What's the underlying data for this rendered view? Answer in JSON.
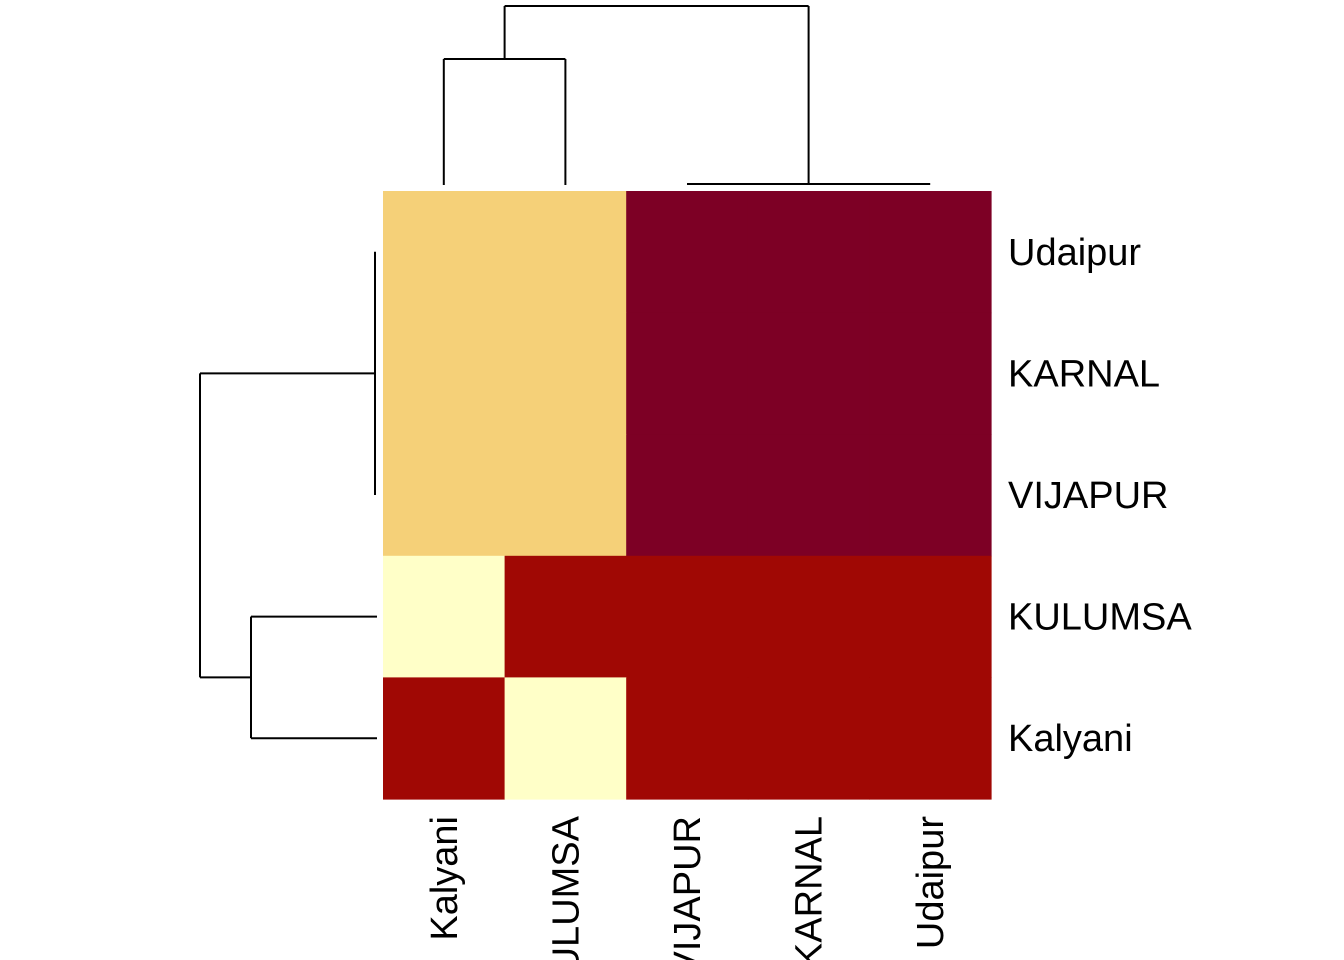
{
  "chart_data": {
    "type": "heatmap",
    "title": "",
    "xlabel": "",
    "ylabel": "",
    "columns": [
      "Kalyani",
      "KULUMSA",
      "VIJAPUR",
      "KARNAL",
      "Udaipur"
    ],
    "rows": [
      "Udaipur",
      "KARNAL",
      "VIJAPUR",
      "KULUMSA",
      "Kalyani"
    ],
    "values": [
      [
        3,
        3,
        0,
        0,
        0
      ],
      [
        3,
        3,
        0,
        0,
        0
      ],
      [
        3,
        3,
        0,
        0,
        0
      ],
      [
        4,
        1,
        1,
        1,
        1
      ],
      [
        1,
        4,
        1,
        1,
        1
      ]
    ],
    "color_scale": {
      "0": "#7d0025",
      "1": "#a00804",
      "3": "#f5d078",
      "4": "#ffffc8"
    },
    "dendrogram_columns": [
      [
        2,
        3
      ],
      [
        4,
        5
      ],
      [
        1,
        2
      ],
      [
        3,
        4
      ]
    ],
    "dendrogram_rows": [
      [
        1,
        2
      ],
      [
        3,
        4
      ],
      [
        2,
        3
      ],
      [
        5,
        6
      ]
    ],
    "grid": false,
    "legend": "none"
  }
}
